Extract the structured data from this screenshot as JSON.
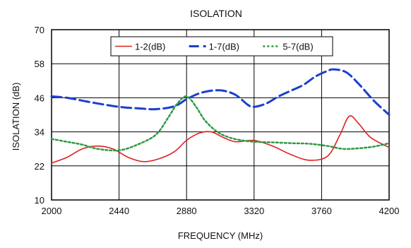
{
  "chart_data": {
    "type": "line",
    "title": "ISOLATION",
    "xlabel": "FREQUENCY (MHz)",
    "ylabel": "ISOLATION (dB)",
    "xlim": [
      2000,
      4200
    ],
    "ylim": [
      10,
      70
    ],
    "xticks": [
      2000,
      2440,
      2880,
      3320,
      3760,
      4200
    ],
    "yticks": [
      10,
      22,
      34,
      46,
      58,
      70
    ],
    "grid": true,
    "legend_position": "top-right",
    "series": [
      {
        "name": "1-2(dB)",
        "color": "#e02020",
        "style": "solid",
        "x": [
          2000,
          2100,
          2200,
          2300,
          2400,
          2500,
          2600,
          2700,
          2800,
          2880,
          2960,
          3040,
          3120,
          3200,
          3320,
          3440,
          3560,
          3680,
          3800,
          3880,
          3940,
          4000,
          4080,
          4200
        ],
        "y": [
          23,
          25,
          28,
          29,
          28,
          25,
          23.5,
          24.5,
          27,
          31,
          33.5,
          34,
          32,
          30.5,
          31,
          29,
          26,
          24,
          25.5,
          33,
          39.5,
          37,
          32,
          28.5
        ]
      },
      {
        "name": "1-7(dB)",
        "color": "#1a3fd0",
        "style": "dashed",
        "x": [
          2000,
          2100,
          2200,
          2300,
          2440,
          2560,
          2680,
          2800,
          2880,
          2960,
          3040,
          3120,
          3200,
          3280,
          3320,
          3400,
          3480,
          3560,
          3640,
          3720,
          3800,
          3840,
          3920,
          4000,
          4100,
          4200
        ],
        "y": [
          46.5,
          46,
          45,
          44,
          42.8,
          42.3,
          42,
          43,
          45.5,
          47.5,
          48.5,
          48.5,
          47,
          43.5,
          42.8,
          44,
          46.5,
          48.5,
          50.5,
          53.5,
          55.5,
          56,
          55,
          51,
          45,
          40
        ]
      },
      {
        "name": "5-7(dB)",
        "color": "#2e9a44",
        "style": "dotted",
        "x": [
          2000,
          2100,
          2200,
          2300,
          2440,
          2560,
          2680,
          2760,
          2820,
          2880,
          2940,
          3000,
          3080,
          3160,
          3240,
          3320,
          3440,
          3560,
          3680,
          3800,
          3900,
          4000,
          4100,
          4200
        ],
        "y": [
          31.5,
          30.5,
          29.5,
          28,
          27.5,
          29.5,
          33,
          39,
          44,
          46.5,
          43,
          38,
          34,
          32,
          31,
          30.5,
          30.3,
          30,
          29.8,
          29,
          28,
          28.2,
          28.8,
          30
        ]
      }
    ]
  }
}
